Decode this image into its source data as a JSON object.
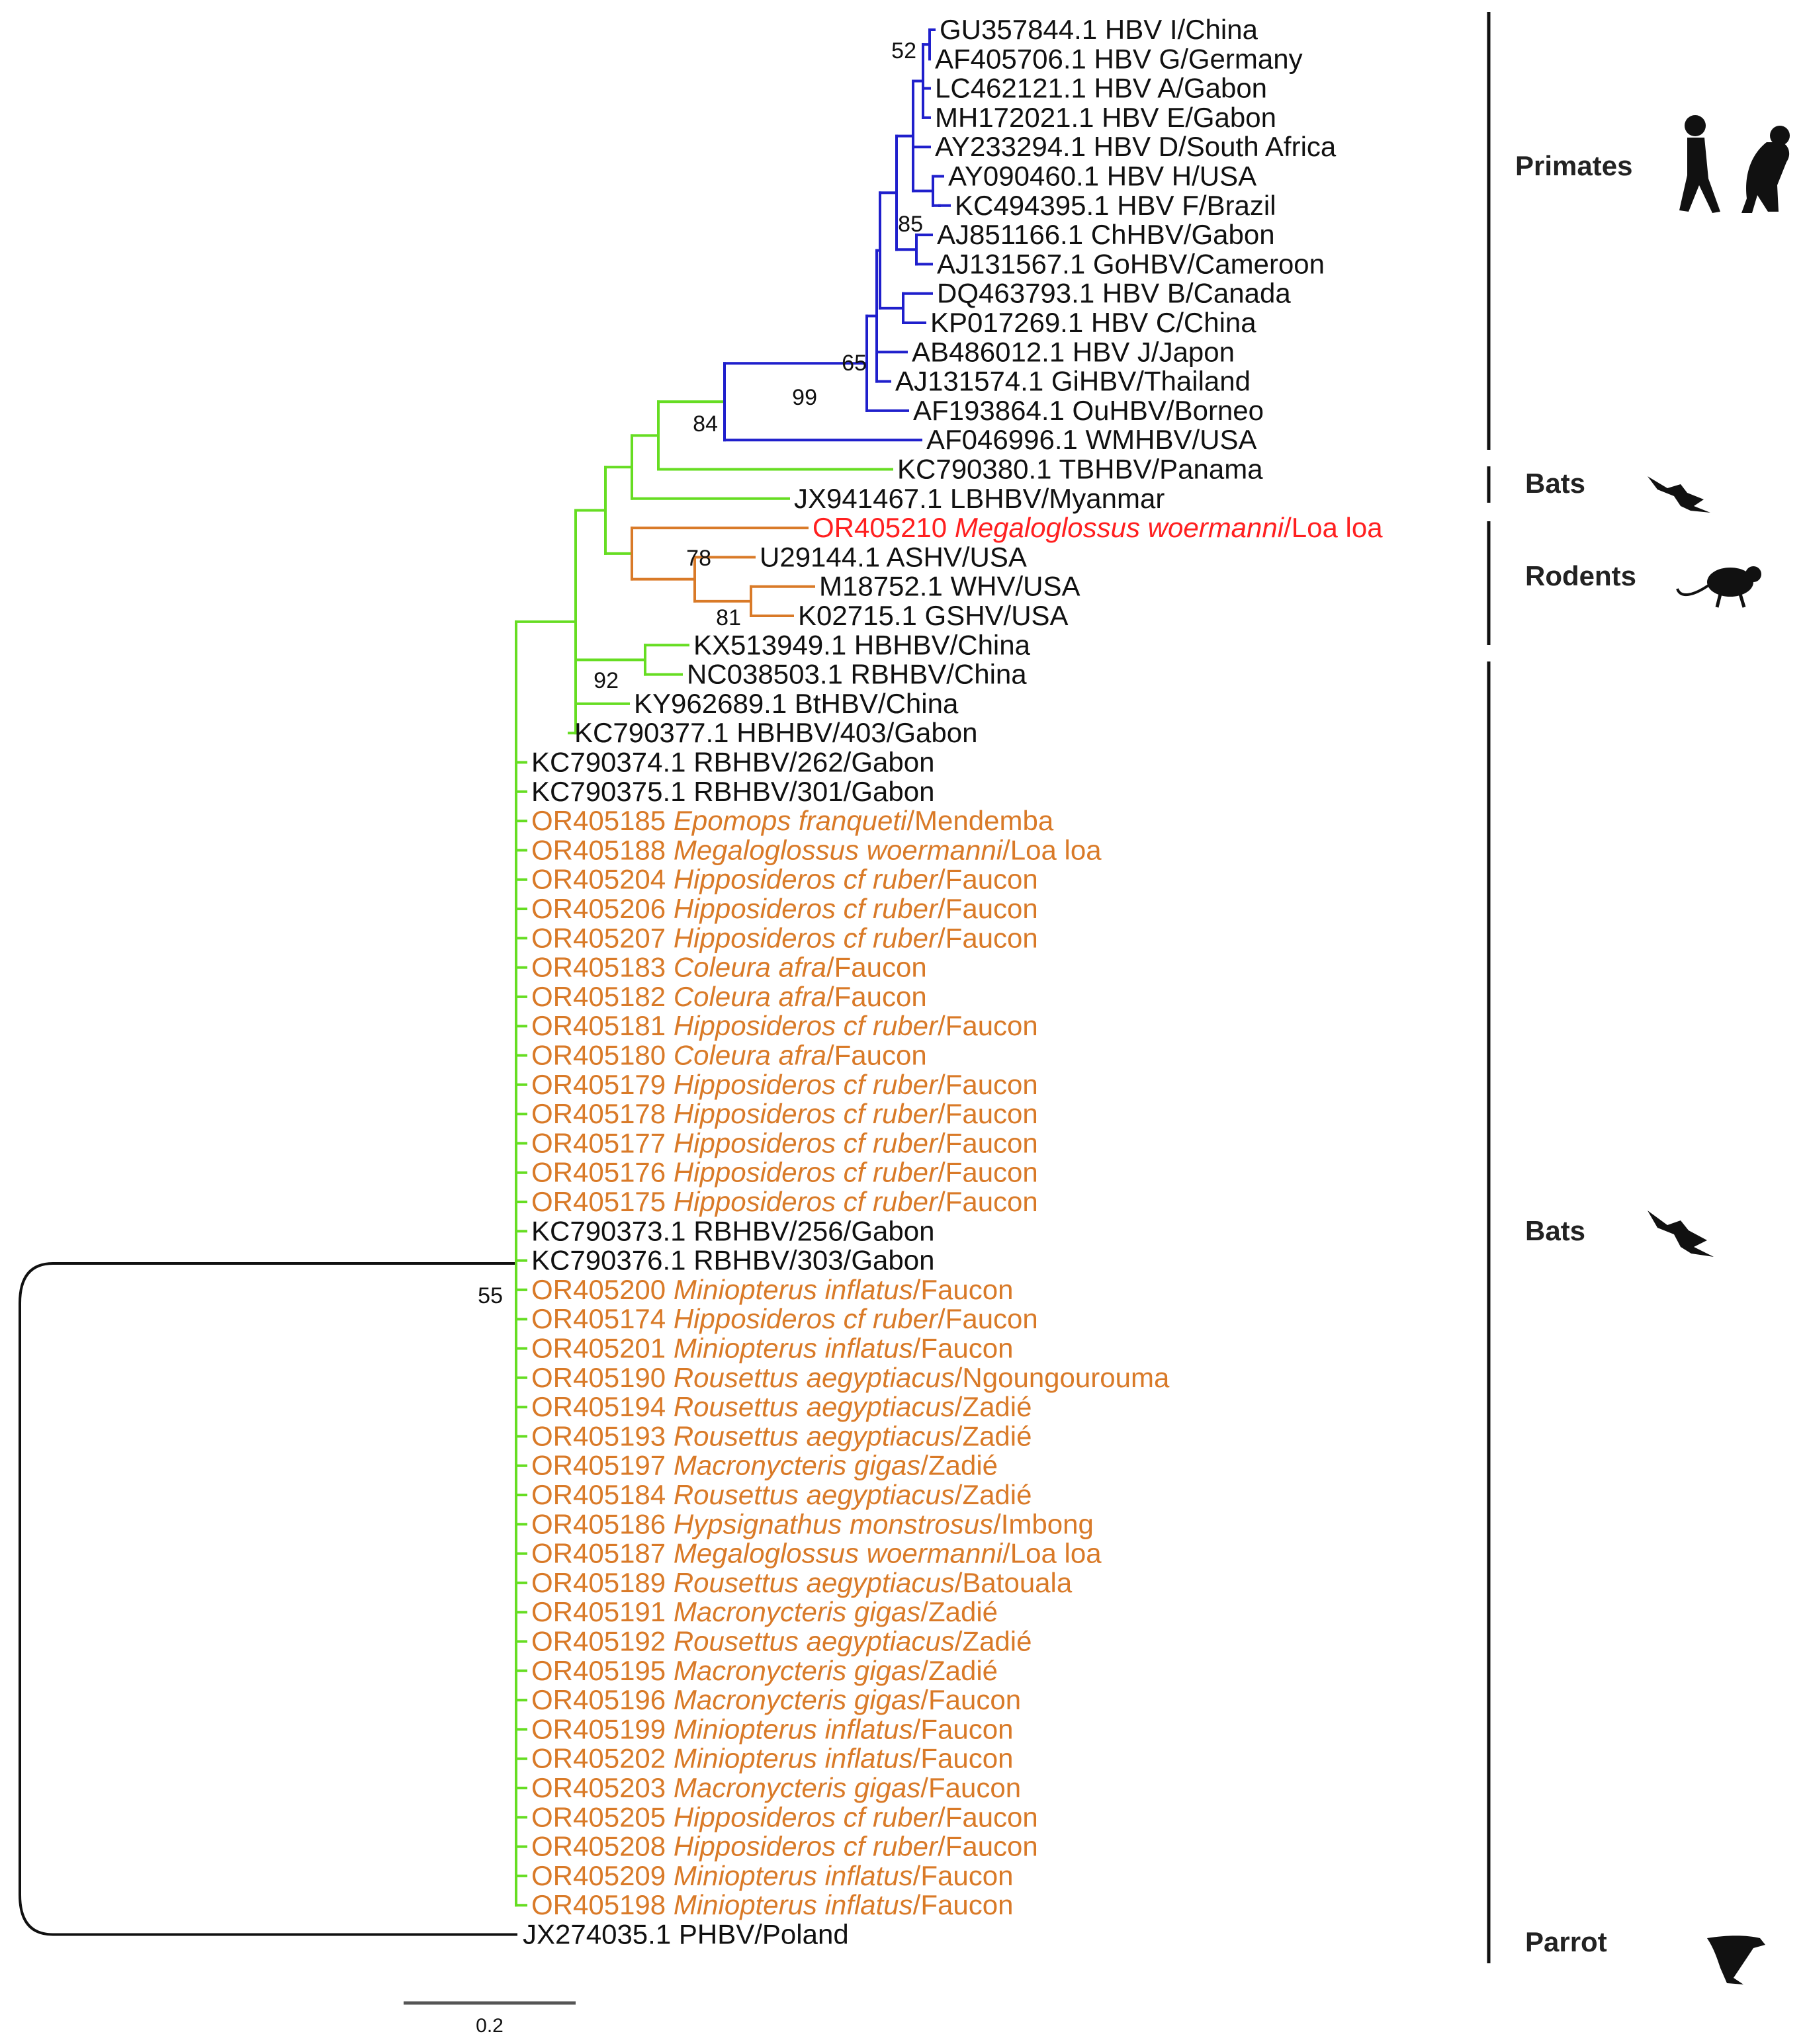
{
  "colors": {
    "blue": "#1f1fcc",
    "green": "#66dd22",
    "orange": "#d97a28",
    "red": "#ff2020",
    "black": "#111111",
    "gray": "#777777"
  },
  "taxa": [
    {
      "acc": "GU357844.1",
      "sp": "",
      "rest": "HBV I/China",
      "color": "black",
      "italic": false
    },
    {
      "acc": "AF405706.1",
      "sp": "",
      "rest": "HBV G/Germany",
      "color": "black",
      "italic": false
    },
    {
      "acc": "LC462121.1",
      "sp": "",
      "rest": "HBV A/Gabon",
      "color": "black",
      "italic": false
    },
    {
      "acc": "MH172021.1",
      "sp": "",
      "rest": "HBV E/Gabon",
      "color": "black",
      "italic": false
    },
    {
      "acc": "AY233294.1",
      "sp": "",
      "rest": "HBV D/South Africa",
      "color": "black",
      "italic": false
    },
    {
      "acc": "AY090460.1",
      "sp": "",
      "rest": "HBV H/USA",
      "color": "black",
      "italic": false
    },
    {
      "acc": "KC494395.1",
      "sp": "",
      "rest": "HBV F/Brazil",
      "color": "black",
      "italic": false
    },
    {
      "acc": "AJ851166.1",
      "sp": "",
      "rest": "ChHBV/Gabon",
      "color": "black",
      "italic": false
    },
    {
      "acc": "AJ131567.1",
      "sp": "",
      "rest": "GoHBV/Cameroon",
      "color": "black",
      "italic": false
    },
    {
      "acc": "DQ463793.1",
      "sp": "",
      "rest": "HBV B/Canada",
      "color": "black",
      "italic": false
    },
    {
      "acc": "KP017269.1",
      "sp": "",
      "rest": "HBV C/China",
      "color": "black",
      "italic": false
    },
    {
      "acc": "AB486012.1",
      "sp": "",
      "rest": "HBV J/Japon",
      "color": "black",
      "italic": false
    },
    {
      "acc": "AJ131574.1",
      "sp": "",
      "rest": "GiHBV/Thailand",
      "color": "black",
      "italic": false
    },
    {
      "acc": "AF193864.1",
      "sp": "",
      "rest": "OuHBV/Borneo",
      "color": "black",
      "italic": false
    },
    {
      "acc": "AF046996.1",
      "sp": "",
      "rest": "WMHBV/USA",
      "color": "black",
      "italic": false
    },
    {
      "acc": "KC790380.1",
      "sp": "",
      "rest": "TBHBV/Panama",
      "color": "black",
      "italic": false
    },
    {
      "acc": "JX941467.1",
      "sp": "",
      "rest": "LBHBV/Myanmar",
      "color": "black",
      "italic": false
    },
    {
      "acc": "OR405210",
      "sp": "Megaloglossus woermanni",
      "rest": "/Loa loa",
      "color": "red",
      "italic": true
    },
    {
      "acc": "U29144.1",
      "sp": "",
      "rest": "ASHV/USA",
      "color": "black",
      "italic": false
    },
    {
      "acc": "M18752.1",
      "sp": "",
      "rest": "WHV/USA",
      "color": "black",
      "italic": false
    },
    {
      "acc": "K02715.1",
      "sp": "",
      "rest": "GSHV/USA",
      "color": "black",
      "italic": false
    },
    {
      "acc": "KX513949.1",
      "sp": "",
      "rest": "HBHBV/China",
      "color": "black",
      "italic": false
    },
    {
      "acc": "NC038503.1",
      "sp": "",
      "rest": "RBHBV/China",
      "color": "black",
      "italic": false
    },
    {
      "acc": "KY962689.1",
      "sp": "",
      "rest": "BtHBV/China",
      "color": "black",
      "italic": false
    },
    {
      "acc": "KC790377.1",
      "sp": "",
      "rest": "HBHBV/403/Gabon",
      "color": "black",
      "italic": false
    },
    {
      "acc": "KC790374.1",
      "sp": "",
      "rest": "RBHBV/262/Gabon",
      "color": "black",
      "italic": false
    },
    {
      "acc": "KC790375.1",
      "sp": "",
      "rest": "RBHBV/301/Gabon",
      "color": "black",
      "italic": false
    },
    {
      "acc": "OR405185",
      "sp": "Epomops franqueti",
      "rest": "/Mendemba",
      "color": "orange",
      "italic": true
    },
    {
      "acc": "OR405188",
      "sp": "Megaloglossus woermanni",
      "rest": "/Loa loa",
      "color": "orange",
      "italic": true
    },
    {
      "acc": "OR405204",
      "sp": "Hipposideros cf ruber",
      "rest": "/Faucon",
      "color": "orange",
      "italic": true
    },
    {
      "acc": "OR405206",
      "sp": "Hipposideros cf ruber",
      "rest": "/Faucon",
      "color": "orange",
      "italic": true
    },
    {
      "acc": "OR405207",
      "sp": "Hipposideros cf ruber",
      "rest": "/Faucon",
      "color": "orange",
      "italic": true
    },
    {
      "acc": "OR405183",
      "sp": "Coleura afra",
      "rest": "/Faucon",
      "color": "orange",
      "italic": true
    },
    {
      "acc": "OR405182",
      "sp": "Coleura afra",
      "rest": "/Faucon",
      "color": "orange",
      "italic": true
    },
    {
      "acc": "OR405181",
      "sp": "Hipposideros cf ruber",
      "rest": "/Faucon",
      "color": "orange",
      "italic": true
    },
    {
      "acc": "OR405180",
      "sp": "Coleura afra",
      "rest": "/Faucon",
      "color": "orange",
      "italic": true
    },
    {
      "acc": "OR405179",
      "sp": "Hipposideros cf ruber",
      "rest": "/Faucon",
      "color": "orange",
      "italic": true
    },
    {
      "acc": "OR405178",
      "sp": "Hipposideros cf ruber",
      "rest": "/Faucon",
      "color": "orange",
      "italic": true
    },
    {
      "acc": "OR405177",
      "sp": "Hipposideros cf ruber",
      "rest": "/Faucon",
      "color": "orange",
      "italic": true
    },
    {
      "acc": "OR405176",
      "sp": "Hipposideros cf ruber",
      "rest": "/Faucon",
      "color": "orange",
      "italic": true
    },
    {
      "acc": "OR405175",
      "sp": "Hipposideros cf ruber",
      "rest": "/Faucon",
      "color": "orange",
      "italic": true
    },
    {
      "acc": "KC790373.1",
      "sp": "",
      "rest": "RBHBV/256/Gabon",
      "color": "black",
      "italic": false
    },
    {
      "acc": "KC790376.1",
      "sp": "",
      "rest": "RBHBV/303/Gabon",
      "color": "black",
      "italic": false
    },
    {
      "acc": "OR405200",
      "sp": "Miniopterus inflatus",
      "rest": "/Faucon",
      "color": "orange",
      "italic": true
    },
    {
      "acc": "OR405174",
      "sp": "Hipposideros cf ruber",
      "rest": "/Faucon",
      "color": "orange",
      "italic": true
    },
    {
      "acc": "OR405201",
      "sp": "Miniopterus inflatus",
      "rest": "/Faucon",
      "color": "orange",
      "italic": true
    },
    {
      "acc": "OR405190",
      "sp": "Rousettus aegyptiacus",
      "rest": "/Ngoungourouma",
      "color": "orange",
      "italic": true
    },
    {
      "acc": "OR405194",
      "sp": "Rousettus aegyptiacus",
      "rest": "/Zadié",
      "color": "orange",
      "italic": true
    },
    {
      "acc": "OR405193",
      "sp": "Rousettus aegyptiacus",
      "rest": "/Zadié",
      "color": "orange",
      "italic": true
    },
    {
      "acc": "OR405197",
      "sp": "Macronycteris gigas",
      "rest": "/Zadié",
      "color": "orange",
      "italic": true
    },
    {
      "acc": "OR405184",
      "sp": "Rousettus aegyptiacus",
      "rest": "/Zadié",
      "color": "orange",
      "italic": true
    },
    {
      "acc": "OR405186",
      "sp": "Hypsignathus monstrosus",
      "rest": "/Imbong",
      "color": "orange",
      "italic": true
    },
    {
      "acc": "OR405187",
      "sp": "Megaloglossus woermanni",
      "rest": "/Loa loa",
      "color": "orange",
      "italic": true
    },
    {
      "acc": "OR405189",
      "sp": "Rousettus aegyptiacus",
      "rest": "/Batouala",
      "color": "orange",
      "italic": true
    },
    {
      "acc": "OR405191",
      "sp": "Macronycteris gigas",
      "rest": "/Zadié",
      "color": "orange",
      "italic": true
    },
    {
      "acc": "OR405192",
      "sp": "Rousettus aegyptiacus",
      "rest": "/Zadié",
      "color": "orange",
      "italic": true
    },
    {
      "acc": "OR405195",
      "sp": "Macronycteris gigas",
      "rest": "/Zadié",
      "color": "orange",
      "italic": true
    },
    {
      "acc": "OR405196",
      "sp": "Macronycteris gigas",
      "rest": "/Faucon",
      "color": "orange",
      "italic": true
    },
    {
      "acc": "OR405199",
      "sp": "Miniopterus inflatus",
      "rest": "/Faucon",
      "color": "orange",
      "italic": true
    },
    {
      "acc": "OR405202",
      "sp": "Miniopterus inflatus",
      "rest": "/Faucon",
      "color": "orange",
      "italic": true
    },
    {
      "acc": "OR405203",
      "sp": "Macronycteris gigas",
      "rest": "/Faucon",
      "color": "orange",
      "italic": true
    },
    {
      "acc": "OR405205",
      "sp": "Hipposideros cf ruber",
      "rest": "/Faucon",
      "color": "orange",
      "italic": true
    },
    {
      "acc": "OR405208",
      "sp": "Hipposideros cf ruber",
      "rest": "/Faucon",
      "color": "orange",
      "italic": true
    },
    {
      "acc": "OR405209",
      "sp": "Miniopterus inflatus",
      "rest": "/Faucon",
      "color": "orange",
      "italic": true
    },
    {
      "acc": "OR405198",
      "sp": "Miniopterus inflatus",
      "rest": "/Faucon",
      "color": "orange",
      "italic": true
    },
    {
      "acc": "JX274035.1",
      "sp": "",
      "rest": "PHBV/Poland",
      "color": "black",
      "italic": false
    }
  ],
  "bootstrap": [
    "52",
    "85",
    "65",
    "99",
    "84",
    "78",
    "81",
    "92",
    "55"
  ],
  "groups": [
    "Primates",
    "Bats",
    "Rodents",
    "Bats",
    "Parrot"
  ],
  "group_icons": [
    "human-icon",
    "chimp-icon",
    "bat-icon",
    "rodent-icon",
    "bat-icon",
    "parrot-icon"
  ],
  "scale": {
    "label": "0.2",
    "value": 0.2
  }
}
